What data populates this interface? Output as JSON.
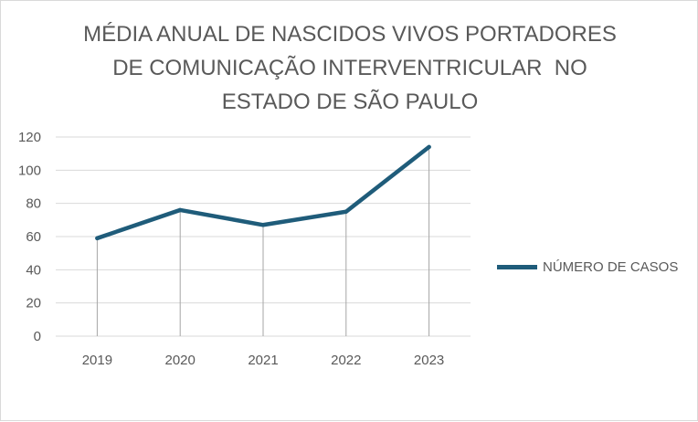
{
  "chart_data": {
    "type": "line",
    "title_lines": [
      "MÉDIA ANUAL DE NASCIDOS VIVOS PORTADORES",
      "DE COMUNICAÇÃO INTERVENTRICULAR  NO",
      "ESTADO DE SÃO PAULO"
    ],
    "categories": [
      "2019",
      "2020",
      "2021",
      "2022",
      "2023"
    ],
    "series": [
      {
        "name": "NÚMERO DE CASOS",
        "values": [
          59,
          76,
          67,
          75,
          114
        ]
      }
    ],
    "yticks": [
      "0",
      "20",
      "40",
      "60",
      "80",
      "100",
      "120"
    ],
    "ylim": [
      0,
      120
    ],
    "grid": true,
    "drop_lines": true,
    "legend_position": "right",
    "colors": {
      "line": "#1f5c7a",
      "grid": "#d9d9d9",
      "drop_line": "#a6a6a6",
      "text": "#595959"
    }
  }
}
